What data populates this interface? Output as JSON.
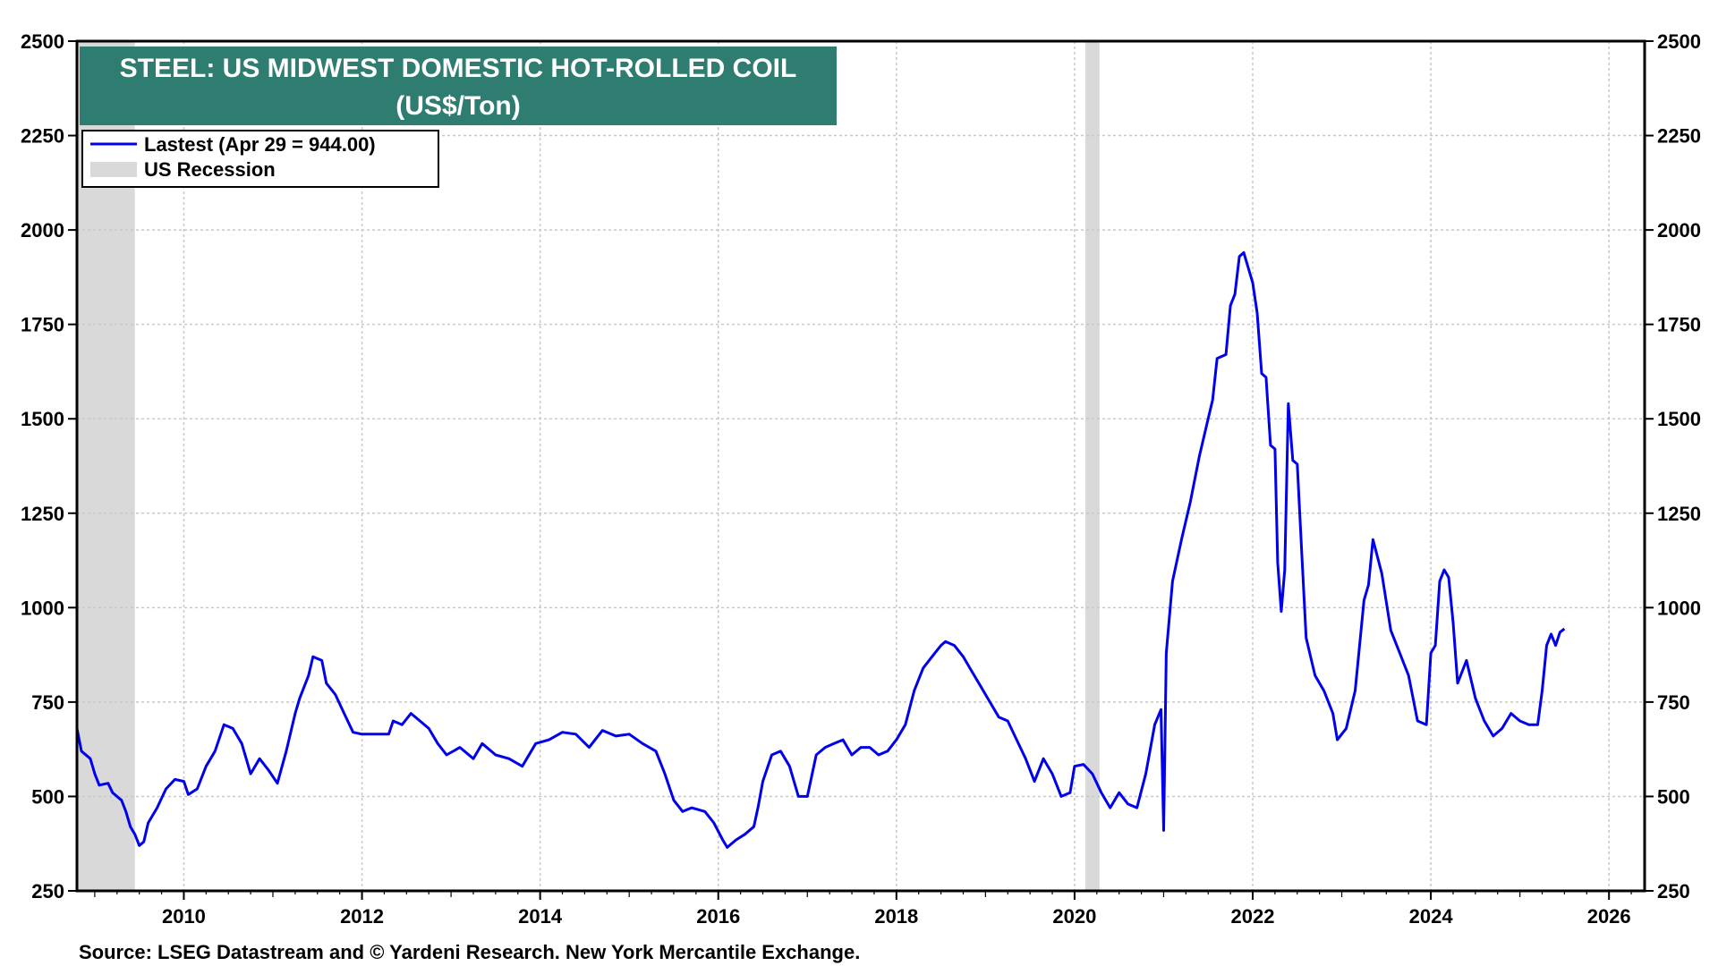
{
  "chart_data": {
    "type": "line",
    "title": "STEEL: US MIDWEST DOMESTIC HOT-ROLLED COIL",
    "subtitle": "(US$/Ton)",
    "xlabel": "",
    "ylabel": "",
    "xlim": [
      2008.8,
      2026.4
    ],
    "ylim": [
      250,
      2500
    ],
    "y_ticks": [
      250,
      500,
      750,
      1000,
      1250,
      1500,
      1750,
      2000,
      2250,
      2500
    ],
    "x_ticks": [
      2010,
      2012,
      2014,
      2016,
      2018,
      2020,
      2022,
      2024,
      2026
    ],
    "grid": true,
    "legend_position": "top-left",
    "legend": {
      "series_label": "Lastest (Apr 29 = 944.00)",
      "recession_label": "US Recession"
    },
    "recessions": [
      {
        "start": 2008.8,
        "end": 2009.45
      },
      {
        "start": 2020.12,
        "end": 2020.28
      }
    ],
    "series": [
      {
        "color": "#0000ee",
        "points": [
          [
            2008.8,
            680
          ],
          [
            2008.85,
            620
          ],
          [
            2008.95,
            600
          ],
          [
            2009.0,
            560
          ],
          [
            2009.05,
            530
          ],
          [
            2009.15,
            535
          ],
          [
            2009.2,
            510
          ],
          [
            2009.3,
            490
          ],
          [
            2009.35,
            460
          ],
          [
            2009.4,
            420
          ],
          [
            2009.45,
            400
          ],
          [
            2009.5,
            370
          ],
          [
            2009.55,
            380
          ],
          [
            2009.6,
            430
          ],
          [
            2009.7,
            470
          ],
          [
            2009.8,
            520
          ],
          [
            2009.9,
            545
          ],
          [
            2010.0,
            540
          ],
          [
            2010.05,
            505
          ],
          [
            2010.15,
            520
          ],
          [
            2010.25,
            580
          ],
          [
            2010.35,
            620
          ],
          [
            2010.45,
            690
          ],
          [
            2010.55,
            680
          ],
          [
            2010.65,
            640
          ],
          [
            2010.75,
            560
          ],
          [
            2010.85,
            600
          ],
          [
            2010.95,
            570
          ],
          [
            2011.05,
            535
          ],
          [
            2011.15,
            620
          ],
          [
            2011.25,
            720
          ],
          [
            2011.3,
            760
          ],
          [
            2011.4,
            820
          ],
          [
            2011.45,
            870
          ],
          [
            2011.55,
            860
          ],
          [
            2011.6,
            800
          ],
          [
            2011.7,
            770
          ],
          [
            2011.8,
            720
          ],
          [
            2011.9,
            670
          ],
          [
            2012.0,
            665
          ],
          [
            2012.3,
            665
          ],
          [
            2012.35,
            700
          ],
          [
            2012.45,
            690
          ],
          [
            2012.55,
            720
          ],
          [
            2012.65,
            700
          ],
          [
            2012.75,
            680
          ],
          [
            2012.85,
            640
          ],
          [
            2012.95,
            610
          ],
          [
            2013.1,
            630
          ],
          [
            2013.25,
            600
          ],
          [
            2013.35,
            640
          ],
          [
            2013.5,
            610
          ],
          [
            2013.65,
            600
          ],
          [
            2013.8,
            580
          ],
          [
            2013.95,
            640
          ],
          [
            2014.1,
            650
          ],
          [
            2014.25,
            670
          ],
          [
            2014.4,
            665
          ],
          [
            2014.55,
            630
          ],
          [
            2014.7,
            675
          ],
          [
            2014.85,
            660
          ],
          [
            2015.0,
            665
          ],
          [
            2015.15,
            640
          ],
          [
            2015.3,
            620
          ],
          [
            2015.4,
            560
          ],
          [
            2015.5,
            490
          ],
          [
            2015.6,
            460
          ],
          [
            2015.7,
            470
          ],
          [
            2015.85,
            460
          ],
          [
            2015.95,
            430
          ],
          [
            2016.05,
            385
          ],
          [
            2016.1,
            365
          ],
          [
            2016.2,
            385
          ],
          [
            2016.3,
            400
          ],
          [
            2016.4,
            420
          ],
          [
            2016.45,
            475
          ],
          [
            2016.5,
            540
          ],
          [
            2016.6,
            610
          ],
          [
            2016.7,
            620
          ],
          [
            2016.8,
            580
          ],
          [
            2016.9,
            500
          ],
          [
            2017.0,
            500
          ],
          [
            2017.1,
            610
          ],
          [
            2017.2,
            630
          ],
          [
            2017.3,
            640
          ],
          [
            2017.4,
            650
          ],
          [
            2017.5,
            610
          ],
          [
            2017.6,
            630
          ],
          [
            2017.7,
            630
          ],
          [
            2017.8,
            610
          ],
          [
            2017.9,
            620
          ],
          [
            2018.0,
            650
          ],
          [
            2018.1,
            690
          ],
          [
            2018.2,
            780
          ],
          [
            2018.3,
            840
          ],
          [
            2018.4,
            870
          ],
          [
            2018.5,
            900
          ],
          [
            2018.55,
            910
          ],
          [
            2018.65,
            900
          ],
          [
            2018.75,
            870
          ],
          [
            2018.85,
            830
          ],
          [
            2018.95,
            790
          ],
          [
            2019.05,
            750
          ],
          [
            2019.15,
            710
          ],
          [
            2019.25,
            700
          ],
          [
            2019.35,
            650
          ],
          [
            2019.45,
            600
          ],
          [
            2019.55,
            540
          ],
          [
            2019.65,
            600
          ],
          [
            2019.75,
            560
          ],
          [
            2019.85,
            500
          ],
          [
            2019.95,
            510
          ],
          [
            2020.0,
            580
          ],
          [
            2020.1,
            585
          ],
          [
            2020.2,
            560
          ],
          [
            2020.3,
            510
          ],
          [
            2020.4,
            470
          ],
          [
            2020.5,
            510
          ],
          [
            2020.6,
            480
          ],
          [
            2020.7,
            470
          ],
          [
            2020.8,
            560
          ],
          [
            2020.9,
            690
          ],
          [
            2020.97,
            730
          ],
          [
            2021.0,
            410
          ],
          [
            2021.03,
            880
          ],
          [
            2021.1,
            1070
          ],
          [
            2021.2,
            1180
          ],
          [
            2021.3,
            1280
          ],
          [
            2021.4,
            1400
          ],
          [
            2021.5,
            1500
          ],
          [
            2021.55,
            1550
          ],
          [
            2021.6,
            1660
          ],
          [
            2021.7,
            1670
          ],
          [
            2021.75,
            1800
          ],
          [
            2021.8,
            1830
          ],
          [
            2021.85,
            1930
          ],
          [
            2021.9,
            1940
          ],
          [
            2021.95,
            1900
          ],
          [
            2022.0,
            1860
          ],
          [
            2022.05,
            1780
          ],
          [
            2022.1,
            1620
          ],
          [
            2022.15,
            1610
          ],
          [
            2022.2,
            1430
          ],
          [
            2022.25,
            1420
          ],
          [
            2022.28,
            1120
          ],
          [
            2022.32,
            990
          ],
          [
            2022.36,
            1100
          ],
          [
            2022.4,
            1540
          ],
          [
            2022.45,
            1390
          ],
          [
            2022.5,
            1380
          ],
          [
            2022.55,
            1150
          ],
          [
            2022.6,
            920
          ],
          [
            2022.7,
            820
          ],
          [
            2022.8,
            780
          ],
          [
            2022.9,
            720
          ],
          [
            2022.95,
            650
          ],
          [
            2023.05,
            680
          ],
          [
            2023.15,
            780
          ],
          [
            2023.25,
            1020
          ],
          [
            2023.3,
            1060
          ],
          [
            2023.35,
            1180
          ],
          [
            2023.45,
            1090
          ],
          [
            2023.55,
            940
          ],
          [
            2023.65,
            880
          ],
          [
            2023.75,
            820
          ],
          [
            2023.85,
            700
          ],
          [
            2023.95,
            690
          ],
          [
            2024.0,
            880
          ],
          [
            2024.05,
            900
          ],
          [
            2024.1,
            1070
          ],
          [
            2024.15,
            1100
          ],
          [
            2024.2,
            1080
          ],
          [
            2024.25,
            960
          ],
          [
            2024.3,
            800
          ],
          [
            2024.4,
            860
          ],
          [
            2024.5,
            760
          ],
          [
            2024.6,
            700
          ],
          [
            2024.7,
            660
          ],
          [
            2024.8,
            680
          ],
          [
            2024.9,
            720
          ],
          [
            2025.0,
            700
          ],
          [
            2025.1,
            690
          ],
          [
            2025.2,
            690
          ],
          [
            2025.25,
            780
          ],
          [
            2025.3,
            900
          ],
          [
            2025.35,
            930
          ],
          [
            2025.4,
            900
          ],
          [
            2025.45,
            935
          ],
          [
            2025.5,
            944
          ]
        ]
      }
    ],
    "source": "Source: LSEG Datastream and © Yardeni Research. New York Mercantile Exchange."
  }
}
